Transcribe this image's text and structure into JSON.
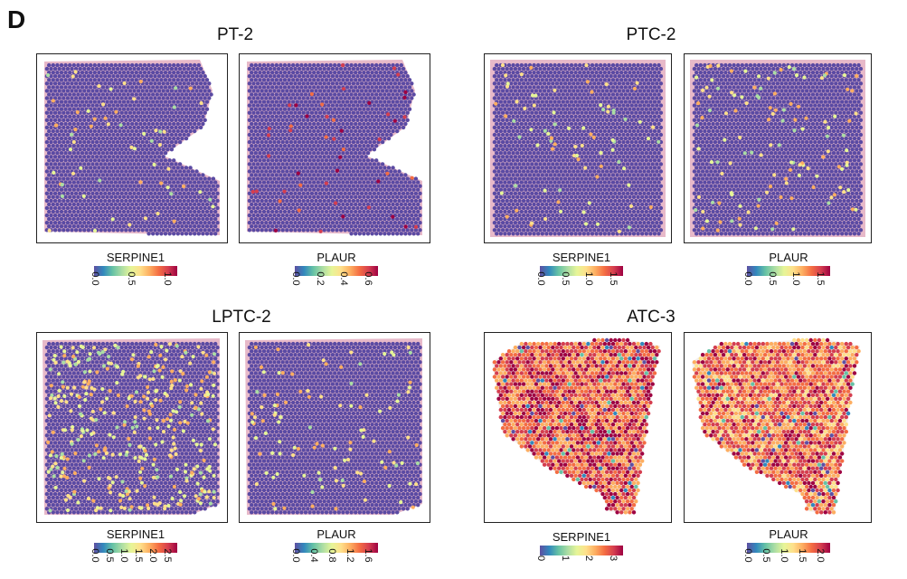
{
  "panel_label": "D",
  "samples": [
    {
      "title": "PT-2",
      "panels": [
        {
          "gene": "SERPINE1",
          "ticks": [
            "0.0",
            "0.5",
            "1.0"
          ],
          "range": [
            0,
            1.2
          ]
        },
        {
          "gene": "PLAUR",
          "ticks": [
            "0.0",
            "0.2",
            "0.4",
            "0.6"
          ],
          "range": [
            0,
            0.65
          ]
        }
      ]
    },
    {
      "title": "PTC-2",
      "panels": [
        {
          "gene": "SERPINE1",
          "ticks": [
            "0.0",
            "0.5",
            "1.0",
            "1.5"
          ],
          "range": [
            0,
            1.7
          ]
        },
        {
          "gene": "PLAUR",
          "ticks": [
            "0.0",
            "0.5",
            "1.0",
            "1.5"
          ],
          "range": [
            0,
            1.7
          ]
        }
      ]
    },
    {
      "title": "LPTC-2",
      "panels": [
        {
          "gene": "SERPINE1",
          "ticks": [
            "0.0",
            "0.5",
            "1.0",
            "1.5",
            "2.0",
            "2.5"
          ],
          "range": [
            0,
            2.6
          ]
        },
        {
          "gene": "PLAUR",
          "ticks": [
            "0.0",
            "0.4",
            "0.8",
            "1.2",
            "1.6"
          ],
          "range": [
            0,
            1.7
          ]
        }
      ]
    },
    {
      "title": "ATC-3",
      "panels": [
        {
          "gene": "SERPINE1",
          "ticks": [
            "0",
            "1",
            "2",
            "3"
          ],
          "range": [
            0,
            3.4
          ]
        },
        {
          "gene": "PLAUR",
          "ticks": [
            "0.0",
            "0.5",
            "1.0",
            "1.5",
            "2.0"
          ],
          "range": [
            0,
            2.1
          ]
        }
      ]
    }
  ],
  "colors": {
    "background_spot": "#5a4aa3",
    "tissue_pink": "#e7b9c9",
    "colormap": [
      "#5e4fa2",
      "#3288bd",
      "#66c2a5",
      "#abdda4",
      "#e6f598",
      "#fee08b",
      "#fdae61",
      "#f46d43",
      "#d53e4f",
      "#9e0142"
    ]
  }
}
